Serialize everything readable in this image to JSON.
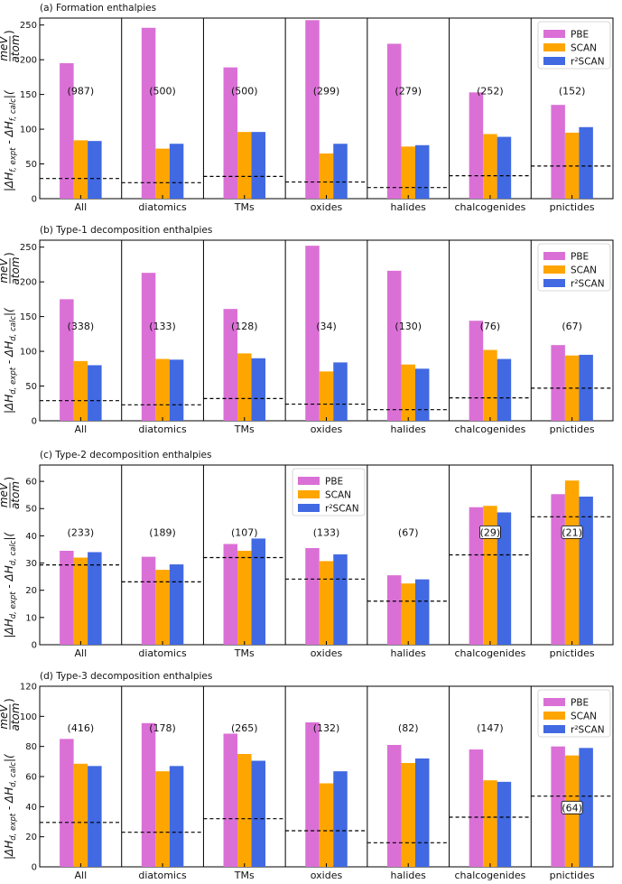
{
  "colors": {
    "PBE": "#da70d6",
    "SCAN": "#ffa500",
    "r2SCAN": "#4169e1",
    "frame": "#000000",
    "baseline": "#000000"
  },
  "chart_data": [
    {
      "type": "bar",
      "title": "(a) Formation enthalpies",
      "ylabel_tex": "|ΔH_f,expt - ΔH_f,calc|(meV/atom)",
      "ylabel_parts": {
        "main": "|ΔH",
        "sub1": "f, expt",
        "mid": " - ΔH",
        "sub2": "f, calc",
        "tail": "|(",
        "num": "meV",
        "den": "atom",
        "close": ")"
      },
      "ylim": [
        0,
        260
      ],
      "yticks": [
        0,
        50,
        100,
        150,
        200,
        250
      ],
      "categories": [
        "All",
        "diatomics",
        "TMs",
        "oxides",
        "halides",
        "chalcogenides",
        "pnictides"
      ],
      "legend": {
        "position": "top-right",
        "entries": [
          "PBE",
          "SCAN",
          "r²SCAN"
        ]
      },
      "series": [
        {
          "name": "PBE",
          "values": [
            195,
            246,
            189,
            257,
            223,
            153,
            135
          ]
        },
        {
          "name": "SCAN",
          "values": [
            84,
            72,
            96,
            65,
            75,
            93,
            95
          ]
        },
        {
          "name": "r²SCAN",
          "values": [
            83,
            79,
            96,
            79,
            77,
            89,
            103
          ]
        }
      ],
      "counts": [
        "(987)",
        "(500)",
        "(500)",
        "(299)",
        "(279)",
        "(252)",
        "(152)"
      ],
      "count_y": [
        150,
        150,
        150,
        150,
        150,
        150,
        150
      ],
      "count_boxed": [
        false,
        false,
        false,
        false,
        false,
        false,
        false
      ],
      "baselines": [
        29,
        23,
        32,
        24,
        16,
        33,
        47
      ]
    },
    {
      "type": "bar",
      "title": "(b) Type-1 decomposition enthalpies",
      "ylabel_tex": "|ΔH_d,expt - ΔH_d,calc|(meV/atom)",
      "ylabel_parts": {
        "main": "|ΔH",
        "sub1": "d, expt",
        "mid": " - ΔH",
        "sub2": "d, calc",
        "tail": "|(",
        "num": "meV",
        "den": "atom",
        "close": ")"
      },
      "ylim": [
        0,
        260
      ],
      "yticks": [
        0,
        50,
        100,
        150,
        200,
        250
      ],
      "categories": [
        "All",
        "diatomics",
        "TMs",
        "oxides",
        "halides",
        "chalcogenides",
        "pnictides"
      ],
      "legend": {
        "position": "top-right",
        "entries": [
          "PBE",
          "SCAN",
          "r²SCAN"
        ]
      },
      "series": [
        {
          "name": "PBE",
          "values": [
            175,
            213,
            161,
            252,
            216,
            144,
            109
          ]
        },
        {
          "name": "SCAN",
          "values": [
            86,
            89,
            97,
            71,
            81,
            102,
            94
          ]
        },
        {
          "name": "r²SCAN",
          "values": [
            80,
            88,
            90,
            84,
            75,
            89,
            95
          ]
        }
      ],
      "counts": [
        "(338)",
        "(133)",
        "(128)",
        "(34)",
        "(130)",
        "(76)",
        "(67)"
      ],
      "count_y": [
        131,
        131,
        131,
        131,
        131,
        131,
        131
      ],
      "count_boxed": [
        false,
        false,
        false,
        false,
        false,
        false,
        false
      ],
      "baselines": [
        29,
        23,
        32,
        24,
        16,
        33,
        47
      ]
    },
    {
      "type": "bar",
      "title": "(c) Type-2 decomposition enthalpies",
      "ylabel_tex": "|ΔH_d,expt - ΔH_d,calc|(meV/atom)",
      "ylabel_parts": {
        "main": "|ΔH",
        "sub1": "d, expt",
        "mid": " - ΔH",
        "sub2": "d, calc",
        "tail": "|(",
        "num": "meV",
        "den": "atom",
        "close": ")"
      },
      "ylim": [
        0,
        66
      ],
      "yticks": [
        0,
        10,
        20,
        30,
        40,
        50,
        60
      ],
      "categories": [
        "All",
        "diatomics",
        "TMs",
        "oxides",
        "halides",
        "chalcogenides",
        "pnictides"
      ],
      "legend": {
        "position": "top-center",
        "entries": [
          "PBE",
          "SCAN",
          "r²SCAN"
        ]
      },
      "series": [
        {
          "name": "PBE",
          "values": [
            34.5,
            32.3,
            37.0,
            35.5,
            25.5,
            50.5,
            55.3
          ]
        },
        {
          "name": "SCAN",
          "values": [
            32.0,
            27.5,
            34.5,
            30.7,
            22.5,
            51.0,
            60.3
          ]
        },
        {
          "name": "r²SCAN",
          "values": [
            34.0,
            29.5,
            39.0,
            33.2,
            24.0,
            48.6,
            54.4
          ]
        }
      ],
      "counts": [
        "(233)",
        "(189)",
        "(107)",
        "(133)",
        "(67)",
        "(29)",
        "(21)"
      ],
      "count_y": [
        40,
        40,
        40,
        40,
        40,
        40,
        40
      ],
      "count_boxed": [
        false,
        false,
        false,
        false,
        false,
        true,
        true
      ],
      "baselines": [
        29.3,
        23.1,
        32.0,
        24.1,
        16.0,
        33.0,
        47.0
      ]
    },
    {
      "type": "bar",
      "title": "(d) Type-3 decomposition enthalpies",
      "ylabel_tex": "|ΔH_d,expt - ΔH_d,calc|(meV/atom)",
      "ylabel_parts": {
        "main": "|ΔH",
        "sub1": "d, expt",
        "mid": " - ΔH",
        "sub2": "d, calc",
        "tail": "|(",
        "num": "meV",
        "den": "atom",
        "close": ")"
      },
      "ylim": [
        0,
        120
      ],
      "yticks": [
        0,
        20,
        40,
        60,
        80,
        100,
        120
      ],
      "categories": [
        "All",
        "diatomics",
        "TMs",
        "oxides",
        "halides",
        "chalcogenides",
        "pnictides"
      ],
      "legend": {
        "position": "top-right",
        "entries": [
          "PBE",
          "SCAN",
          "r²SCAN"
        ]
      },
      "series": [
        {
          "name": "PBE",
          "values": [
            85,
            95.5,
            88.5,
            96,
            81,
            78,
            80
          ]
        },
        {
          "name": "SCAN",
          "values": [
            68.5,
            63.5,
            75,
            55.5,
            69,
            57.5,
            74
          ]
        },
        {
          "name": "r²SCAN",
          "values": [
            67,
            67,
            70.5,
            63.5,
            72,
            56.5,
            79
          ]
        }
      ],
      "counts": [
        "(416)",
        "(178)",
        "(265)",
        "(132)",
        "(82)",
        "(147)",
        "(64)"
      ],
      "count_y": [
        90,
        90,
        90,
        90,
        90,
        90,
        37
      ],
      "count_boxed": [
        false,
        false,
        false,
        false,
        false,
        false,
        true
      ],
      "baselines": [
        29.5,
        23.0,
        32.0,
        24.0,
        16.0,
        33.0,
        47.0
      ]
    }
  ]
}
